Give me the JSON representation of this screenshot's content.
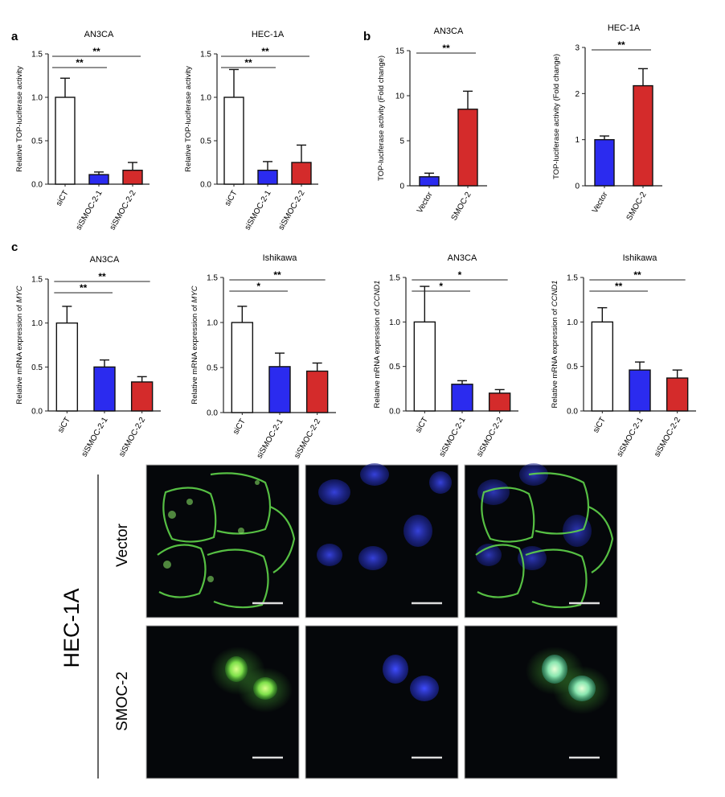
{
  "panel_labels": [
    "a",
    "b",
    "c"
  ],
  "chart_data": [
    {
      "type": "bar",
      "panel": "a",
      "title": "AN3CA",
      "ylabel": "Relative TOP-luciferase activity",
      "categories": [
        "siCT",
        "siSMOC-2-1",
        "siSMOC-2-2"
      ],
      "values": [
        1.0,
        0.11,
        0.16
      ],
      "errors": [
        0.22,
        0.03,
        0.09
      ],
      "colors": [
        "#ffffff",
        "#2b2bef",
        "#d42b2b"
      ],
      "ylim": [
        0,
        1.5
      ],
      "yticks": [
        "0.0",
        "0.5",
        "1.0",
        "1.5"
      ],
      "significance": [
        {
          "from": 0,
          "to": 1,
          "label": "**"
        },
        {
          "from": 0,
          "to": 2,
          "label": "**"
        }
      ]
    },
    {
      "type": "bar",
      "panel": "a",
      "title": "HEC-1A",
      "ylabel": "Relative TOP-luciferase activity",
      "categories": [
        "siCT",
        "siSMOC-2-1",
        "siSMOC-2-2"
      ],
      "values": [
        1.0,
        0.16,
        0.25
      ],
      "errors": [
        0.32,
        0.1,
        0.2
      ],
      "colors": [
        "#ffffff",
        "#2b2bef",
        "#d42b2b"
      ],
      "ylim": [
        0,
        1.5
      ],
      "yticks": [
        "0.0",
        "0.5",
        "1.0",
        "1.5"
      ],
      "significance": [
        {
          "from": 0,
          "to": 1,
          "label": "**"
        },
        {
          "from": 0,
          "to": 2,
          "label": "**"
        }
      ]
    },
    {
      "type": "bar",
      "panel": "b",
      "title": "AN3CA",
      "ylabel": "TOP-luciferase activity (Fold change)",
      "categories": [
        "Vector",
        "SMOC-2"
      ],
      "values": [
        1.0,
        8.5
      ],
      "errors": [
        0.4,
        2.0
      ],
      "colors": [
        "#2b2bef",
        "#d42b2b"
      ],
      "ylim": [
        0,
        15
      ],
      "yticks": [
        "0",
        "5",
        "10",
        "15"
      ],
      "significance": [
        {
          "from": 0,
          "to": 1,
          "label": "**"
        }
      ]
    },
    {
      "type": "bar",
      "panel": "b",
      "title": "HEC-1A",
      "ylabel": "TOP-luciferase activity (Fold change)",
      "categories": [
        "Vector",
        "SMOC-2"
      ],
      "values": [
        1.0,
        2.17
      ],
      "errors": [
        0.08,
        0.37
      ],
      "colors": [
        "#2b2bef",
        "#d42b2b"
      ],
      "ylim": [
        0,
        3
      ],
      "yticks": [
        "0",
        "1",
        "2",
        "3"
      ],
      "significance": [
        {
          "from": 0,
          "to": 1,
          "label": "**"
        }
      ]
    },
    {
      "type": "bar",
      "panel": "c",
      "title": "AN3CA",
      "ylabel": "Relative mRNA expression of MYC",
      "categories": [
        "siCT",
        "siSMOC-2-1",
        "siSMOC-2-2"
      ],
      "values": [
        1.0,
        0.5,
        0.33
      ],
      "errors": [
        0.19,
        0.08,
        0.06
      ],
      "colors": [
        "#ffffff",
        "#2b2bef",
        "#d42b2b"
      ],
      "ylim": [
        0,
        1.5
      ],
      "yticks": [
        "0.0",
        "0.5",
        "1.0",
        "1.5"
      ],
      "significance": [
        {
          "from": 0,
          "to": 1,
          "label": "**"
        },
        {
          "from": 0,
          "to": 2,
          "label": "**"
        }
      ]
    },
    {
      "type": "bar",
      "panel": "c",
      "title": "Ishikawa",
      "ylabel": "Relative mRNA expression of MYC",
      "categories": [
        "siCT",
        "siSMOC-2-1",
        "siSMOC-2-2"
      ],
      "values": [
        1.0,
        0.51,
        0.46
      ],
      "errors": [
        0.18,
        0.15,
        0.09
      ],
      "colors": [
        "#ffffff",
        "#2b2bef",
        "#d42b2b"
      ],
      "ylim": [
        0,
        1.5
      ],
      "yticks": [
        "0.0",
        "0.5",
        "1.0",
        "1.5"
      ],
      "significance": [
        {
          "from": 0,
          "to": 1,
          "label": "*"
        },
        {
          "from": 0,
          "to": 2,
          "label": "**"
        }
      ]
    },
    {
      "type": "bar",
      "panel": "c",
      "title": "AN3CA",
      "ylabel": "Relative mRNA expression of CCND1",
      "categories": [
        "siCT",
        "siSMOC-2-1",
        "siSMOC-2-2"
      ],
      "values": [
        1.0,
        0.3,
        0.2
      ],
      "errors": [
        0.4,
        0.04,
        0.04
      ],
      "colors": [
        "#ffffff",
        "#2b2bef",
        "#d42b2b"
      ],
      "ylim": [
        0,
        1.5
      ],
      "yticks": [
        "0.0",
        "0.5",
        "1.0",
        "1.5"
      ],
      "significance": [
        {
          "from": 0,
          "to": 1,
          "label": "*"
        },
        {
          "from": 0,
          "to": 2,
          "label": "*"
        }
      ]
    },
    {
      "type": "bar",
      "panel": "c",
      "title": "Ishikawa",
      "ylabel": "Relative mRNA expression of CCND1",
      "categories": [
        "siCT",
        "siSMOC-2-1",
        "siSMOC-2-2"
      ],
      "values": [
        1.0,
        0.46,
        0.37
      ],
      "errors": [
        0.16,
        0.09,
        0.09
      ],
      "colors": [
        "#ffffff",
        "#2b2bef",
        "#d42b2b"
      ],
      "ylim": [
        0,
        1.5
      ],
      "yticks": [
        "0.0",
        "0.5",
        "1.0",
        "1.5"
      ],
      "significance": [
        {
          "from": 0,
          "to": 1,
          "label": "**"
        },
        {
          "from": 0,
          "to": 2,
          "label": "**"
        }
      ]
    }
  ],
  "micrographs": {
    "cell_line": "HEC-1A",
    "row_labels": [
      "Vector",
      "SMOC-2"
    ],
    "channel_colors": {
      "green": "#5fd44a",
      "blue": "#2a34c8",
      "background": "#05070a"
    }
  }
}
